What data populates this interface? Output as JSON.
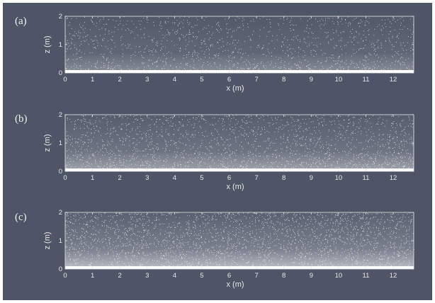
{
  "panels": [
    {
      "label": "(a)",
      "xlabel": "x (m)",
      "ylabel": "z (m)",
      "density": 0.35,
      "xticks": [
        "0",
        "1",
        "2",
        "3",
        "4",
        "5",
        "6",
        "7",
        "8",
        "9",
        "10",
        "11",
        "12"
      ],
      "yticks": [
        "0",
        "1",
        "2"
      ]
    },
    {
      "label": "(b)",
      "xlabel": "x (m)",
      "ylabel": "z (m)",
      "density": 0.6,
      "xticks": [
        "0",
        "1",
        "2",
        "3",
        "4",
        "5",
        "6",
        "7",
        "8",
        "9",
        "10",
        "11",
        "12"
      ],
      "yticks": [
        "0",
        "1",
        "2"
      ]
    },
    {
      "label": "(c)",
      "xlabel": "x (m)",
      "ylabel": "z (m)",
      "density": 0.85,
      "xticks": [
        "0",
        "1",
        "2",
        "3",
        "4",
        "5",
        "6",
        "7",
        "8",
        "9",
        "10",
        "11",
        "12"
      ],
      "yticks": [
        "0",
        "1",
        "2"
      ]
    }
  ],
  "colors": {
    "background": "#4d5566",
    "particles": "#ffffff",
    "axes": "#e8e8e8"
  }
}
